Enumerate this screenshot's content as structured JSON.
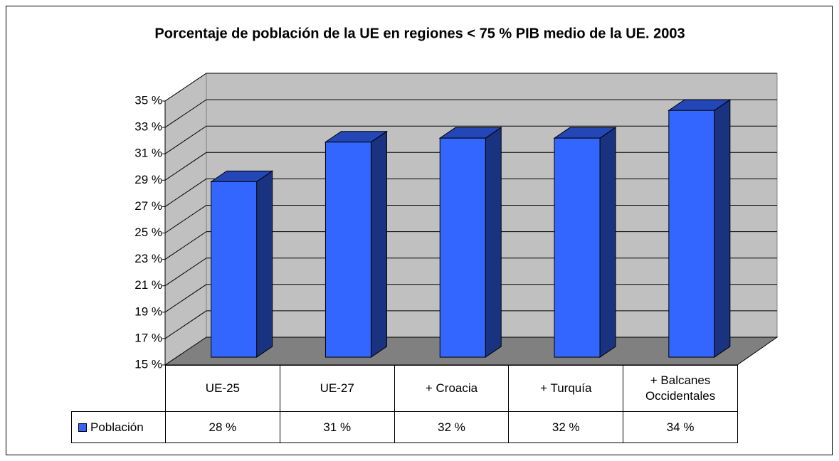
{
  "chart_data": {
    "type": "bar",
    "title": "Porcentaje de población de la UE en regiones < 75 % PIB medio de la UE. 2003",
    "categories": [
      "UE-25",
      "UE-27",
      "+ Croacia",
      "+ Turquía",
      "+ Balcanes Occidentales"
    ],
    "series": [
      {
        "name": "Población",
        "color": "#3366ff",
        "values": [
          28.3,
          31.3,
          31.6,
          31.6,
          33.7
        ],
        "value_labels": [
          "28 %",
          "31 %",
          "32 %",
          "32 %",
          "34 %"
        ]
      }
    ],
    "ylim": [
      15,
      35
    ],
    "yticks": [
      {
        "value": 15,
        "label": "15 %"
      },
      {
        "value": 17,
        "label": "17 %"
      },
      {
        "value": 19,
        "label": "19 %"
      },
      {
        "value": 21,
        "label": "21 %"
      },
      {
        "value": 23,
        "label": "23 %"
      },
      {
        "value": 25,
        "label": "25 %"
      },
      {
        "value": 27,
        "label": "27 %"
      },
      {
        "value": 29,
        "label": "29 %"
      },
      {
        "value": 31,
        "label": "31 %"
      },
      {
        "value": 33,
        "label": "33 %"
      },
      {
        "value": 35,
        "label": "35 %"
      }
    ],
    "grid": true
  }
}
